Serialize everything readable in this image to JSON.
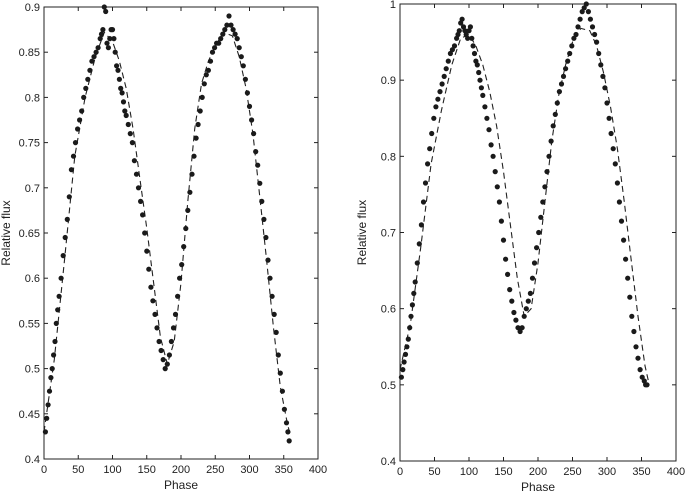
{
  "chart_data": [
    {
      "type": "scatter",
      "xlabel": "Phase",
      "ylabel": "Relative flux",
      "xlim": [
        0,
        400
      ],
      "ylim": [
        0.4,
        0.9
      ],
      "xticks": [
        "0",
        "50",
        "100",
        "150",
        "200",
        "250",
        "300",
        "350",
        "400"
      ],
      "yticks": [
        "0.4",
        "0.45",
        "0.5",
        "0.55",
        "0.6",
        "0.65",
        "0.7",
        "0.75",
        "0.8",
        "0.85",
        "0.9"
      ],
      "grid": false,
      "fit_curve": {
        "style": "dashed",
        "x": [
          0,
          15,
          30,
          45,
          60,
          75,
          88,
          100,
          110,
          120,
          130,
          140,
          150,
          160,
          170,
          180,
          190,
          200,
          210,
          220,
          230,
          240,
          250,
          262,
          275,
          285,
          295,
          305,
          315,
          325,
          335,
          345,
          355,
          360
        ],
        "y": [
          0.43,
          0.51,
          0.62,
          0.735,
          0.8,
          0.845,
          0.872,
          0.862,
          0.84,
          0.81,
          0.765,
          0.71,
          0.655,
          0.595,
          0.535,
          0.505,
          0.53,
          0.595,
          0.685,
          0.765,
          0.815,
          0.84,
          0.857,
          0.872,
          0.868,
          0.845,
          0.81,
          0.76,
          0.69,
          0.62,
          0.545,
          0.48,
          0.44,
          0.425
        ]
      },
      "series": [
        {
          "x": [
            2,
            4,
            6,
            8,
            10,
            12,
            14,
            16,
            18,
            20,
            22,
            25,
            28,
            31,
            34,
            37,
            40,
            43,
            46,
            49,
            52,
            55,
            58,
            61,
            64,
            67,
            70,
            73,
            76,
            79,
            82,
            84,
            86,
            88,
            90,
            92,
            94,
            96,
            98,
            100,
            102,
            104,
            106,
            108,
            110,
            112,
            114,
            116,
            118,
            120,
            123,
            126,
            129,
            132,
            135,
            138,
            141,
            144,
            147,
            150,
            153,
            156,
            159,
            162,
            165,
            168,
            171,
            174,
            177,
            180,
            183,
            186,
            189,
            192,
            195,
            198,
            201,
            204,
            207,
            210,
            213,
            216,
            219,
            222,
            225,
            228,
            231,
            234,
            237,
            240,
            243,
            246,
            249,
            252,
            255,
            258,
            261,
            264,
            267,
            270,
            273,
            276,
            279,
            282,
            285,
            288,
            291,
            294,
            297,
            300,
            303,
            306,
            309,
            312,
            315,
            318,
            321,
            324,
            327,
            330,
            333,
            336,
            339,
            342,
            345,
            348,
            351,
            354,
            356,
            358
          ],
          "y": [
            0.43,
            0.445,
            0.46,
            0.475,
            0.49,
            0.5,
            0.515,
            0.53,
            0.55,
            0.565,
            0.58,
            0.6,
            0.625,
            0.645,
            0.665,
            0.69,
            0.72,
            0.735,
            0.75,
            0.765,
            0.775,
            0.785,
            0.8,
            0.81,
            0.82,
            0.83,
            0.84,
            0.845,
            0.85,
            0.855,
            0.865,
            0.87,
            0.875,
            0.9,
            0.895,
            0.86,
            0.855,
            0.865,
            0.875,
            0.875,
            0.865,
            0.85,
            0.835,
            0.83,
            0.82,
            0.81,
            0.805,
            0.795,
            0.785,
            0.78,
            0.77,
            0.76,
            0.75,
            0.73,
            0.715,
            0.7,
            0.685,
            0.67,
            0.65,
            0.63,
            0.61,
            0.59,
            0.575,
            0.56,
            0.545,
            0.53,
            0.52,
            0.51,
            0.5,
            0.505,
            0.515,
            0.53,
            0.545,
            0.56,
            0.58,
            0.6,
            0.615,
            0.635,
            0.655,
            0.675,
            0.695,
            0.715,
            0.735,
            0.755,
            0.77,
            0.785,
            0.8,
            0.815,
            0.825,
            0.83,
            0.84,
            0.85,
            0.855,
            0.86,
            0.86,
            0.865,
            0.87,
            0.875,
            0.88,
            0.89,
            0.88,
            0.875,
            0.87,
            0.865,
            0.855,
            0.845,
            0.835,
            0.82,
            0.805,
            0.79,
            0.775,
            0.76,
            0.74,
            0.725,
            0.705,
            0.685,
            0.665,
            0.645,
            0.62,
            0.6,
            0.58,
            0.56,
            0.54,
            0.515,
            0.495,
            0.475,
            0.455,
            0.44,
            0.43,
            0.42
          ]
        }
      ]
    },
    {
      "type": "scatter",
      "xlabel": "Phase",
      "ylabel": "Relative flux",
      "xlim": [
        0,
        400
      ],
      "ylim": [
        0.4,
        1.0
      ],
      "xticks": [
        "0",
        "50",
        "100",
        "150",
        "200",
        "250",
        "300",
        "350",
        "400"
      ],
      "yticks": [
        "0.4",
        "0.5",
        "0.6",
        "0.7",
        "0.8",
        "0.9",
        "1"
      ],
      "grid": false,
      "fit_curve": {
        "style": "dashed",
        "x": [
          0,
          15,
          30,
          45,
          60,
          75,
          88,
          100,
          110,
          120,
          130,
          140,
          150,
          160,
          170,
          180,
          190,
          200,
          210,
          220,
          230,
          240,
          250,
          262,
          275,
          285,
          295,
          305,
          315,
          325,
          335,
          345,
          355,
          360
        ],
        "y": [
          0.52,
          0.58,
          0.68,
          0.79,
          0.86,
          0.92,
          0.955,
          0.96,
          0.945,
          0.92,
          0.885,
          0.84,
          0.78,
          0.71,
          0.64,
          0.59,
          0.6,
          0.66,
          0.74,
          0.82,
          0.88,
          0.92,
          0.95,
          0.968,
          0.965,
          0.945,
          0.91,
          0.865,
          0.81,
          0.74,
          0.665,
          0.59,
          0.525,
          0.505
        ]
      },
      "series": [
        {
          "x": [
            2,
            4,
            6,
            8,
            10,
            12,
            14,
            16,
            18,
            20,
            22,
            25,
            28,
            31,
            34,
            37,
            40,
            43,
            46,
            49,
            52,
            55,
            58,
            61,
            64,
            67,
            70,
            73,
            76,
            79,
            82,
            84,
            86,
            88,
            90,
            92,
            94,
            96,
            98,
            100,
            102,
            104,
            106,
            108,
            110,
            112,
            114,
            116,
            118,
            120,
            123,
            126,
            129,
            132,
            135,
            138,
            141,
            144,
            147,
            150,
            153,
            156,
            159,
            162,
            165,
            168,
            171,
            174,
            177,
            180,
            183,
            186,
            189,
            192,
            195,
            198,
            201,
            204,
            207,
            210,
            213,
            216,
            219,
            222,
            225,
            228,
            231,
            234,
            237,
            240,
            243,
            246,
            249,
            252,
            255,
            258,
            261,
            264,
            267,
            270,
            273,
            276,
            279,
            282,
            285,
            288,
            291,
            294,
            297,
            300,
            303,
            306,
            309,
            312,
            315,
            318,
            321,
            324,
            327,
            330,
            333,
            336,
            339,
            342,
            345,
            348,
            351,
            354,
            356,
            358
          ],
          "y": [
            0.51,
            0.52,
            0.53,
            0.54,
            0.55,
            0.56,
            0.575,
            0.59,
            0.605,
            0.62,
            0.635,
            0.66,
            0.685,
            0.71,
            0.74,
            0.765,
            0.79,
            0.81,
            0.83,
            0.85,
            0.865,
            0.875,
            0.885,
            0.895,
            0.905,
            0.915,
            0.925,
            0.935,
            0.94,
            0.945,
            0.955,
            0.96,
            0.965,
            0.975,
            0.98,
            0.97,
            0.965,
            0.96,
            0.955,
            0.965,
            0.97,
            0.955,
            0.945,
            0.935,
            0.925,
            0.92,
            0.91,
            0.9,
            0.89,
            0.88,
            0.865,
            0.85,
            0.835,
            0.815,
            0.8,
            0.78,
            0.76,
            0.74,
            0.715,
            0.69,
            0.665,
            0.645,
            0.625,
            0.61,
            0.595,
            0.585,
            0.575,
            0.57,
            0.575,
            0.59,
            0.6,
            0.61,
            0.62,
            0.64,
            0.66,
            0.68,
            0.7,
            0.72,
            0.74,
            0.76,
            0.78,
            0.8,
            0.82,
            0.84,
            0.855,
            0.87,
            0.885,
            0.895,
            0.905,
            0.915,
            0.925,
            0.935,
            0.945,
            0.955,
            0.96,
            0.97,
            0.98,
            0.99,
            0.995,
            1.0,
            0.99,
            0.98,
            0.97,
            0.96,
            0.95,
            0.935,
            0.92,
            0.905,
            0.89,
            0.87,
            0.85,
            0.83,
            0.81,
            0.79,
            0.765,
            0.74,
            0.715,
            0.69,
            0.665,
            0.64,
            0.615,
            0.59,
            0.57,
            0.55,
            0.535,
            0.52,
            0.51,
            0.505,
            0.5,
            0.5
          ]
        }
      ]
    }
  ]
}
